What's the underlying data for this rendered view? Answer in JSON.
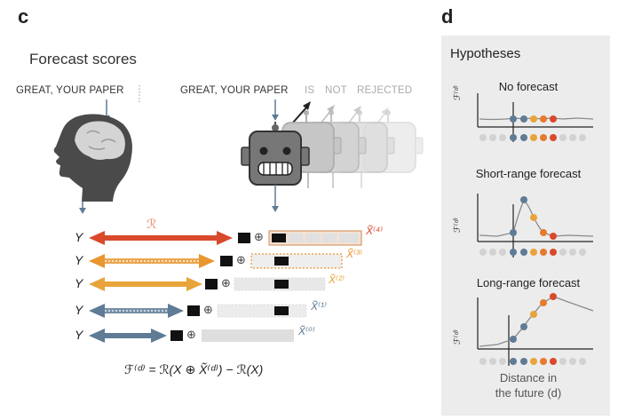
{
  "panel_c": {
    "letter": "c",
    "title": "Forecast scores",
    "human_prompt": "GREAT, YOUR PAPER",
    "model_prompt": "GREAT, YOUR PAPER",
    "future_words": [
      "IS",
      "NOT",
      "REJECTED"
    ],
    "response_symbol": "ℛ",
    "oplus": "⊕",
    "rows": [
      {
        "y_label": "Y",
        "x_label": "X̃⁽⁴⁾",
        "color": "#d84a2b",
        "style": "solid"
      },
      {
        "y_label": "Y",
        "x_label": "X̃⁽³⁾",
        "color": "#e8962f",
        "style": "dotted"
      },
      {
        "y_label": "Y",
        "x_label": "X̃⁽²⁾",
        "color": "#e8a43a",
        "style": "solid"
      },
      {
        "y_label": "Y",
        "x_label": "X̃⁽¹⁾",
        "color": "#5f7b95",
        "style": "dotted"
      },
      {
        "y_label": "Y",
        "x_label": "X̃⁽⁰⁾",
        "color": "#5f7b95",
        "style": "solid"
      }
    ],
    "formula": "ℱ⁽ᵈ⁾ = ℛ(X ⊕ X̃⁽ᵈ⁾) − ℛ(X)"
  },
  "panel_d": {
    "letter": "d",
    "title": "Hypotheses",
    "y_axis_symbol": "ℱ⁽ᵈ⁾",
    "subplots": [
      {
        "title": "No forecast"
      },
      {
        "title": "Short-range forecast"
      },
      {
        "title": "Long-range forecast"
      }
    ],
    "x_label_line1": "Distance in",
    "x_label_line2": "the future (d)",
    "colors": {
      "blue": "#5f7b95",
      "yellow": "#e8a43a",
      "orange": "#e67a2e",
      "red": "#d84a2b",
      "grey": "#d2d2d2",
      "curve": "#8a8a8a"
    }
  }
}
